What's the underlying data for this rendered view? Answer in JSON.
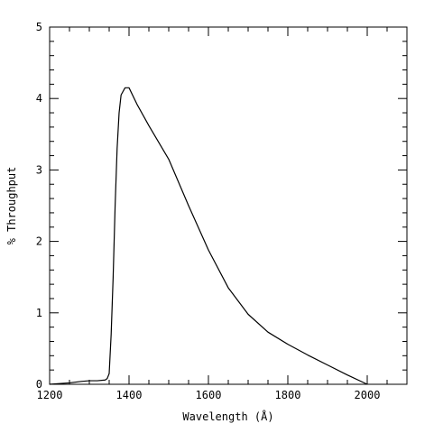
{
  "chart_data": {
    "type": "line",
    "title": "",
    "xlabel": "Wavelength (Å)",
    "ylabel": "% Throughput",
    "xlim": [
      1200,
      2100
    ],
    "ylim": [
      0,
      5
    ],
    "grid": false,
    "x_major_ticks": [
      1200,
      1400,
      1600,
      1800,
      2000
    ],
    "x_tick_labels": [
      "1200",
      "1400",
      "1600",
      "1800",
      "2000"
    ],
    "x_minor_step": 50,
    "y_major_ticks": [
      0,
      1,
      2,
      3,
      4,
      5
    ],
    "y_tick_labels": [
      "0",
      "1",
      "2",
      "3",
      "4",
      "5"
    ],
    "y_minor_step": 0.2,
    "series": [
      {
        "color": "#000000",
        "x": [
          1200,
          1250,
          1280,
          1300,
          1320,
          1340,
          1345,
          1350,
          1355,
          1360,
          1365,
          1370,
          1375,
          1380,
          1390,
          1400,
          1420,
          1450,
          1500,
          1550,
          1600,
          1650,
          1700,
          1750,
          1800,
          1850,
          1900,
          1950,
          2000
        ],
        "y": [
          0.0,
          0.02,
          0.04,
          0.05,
          0.05,
          0.06,
          0.08,
          0.15,
          0.7,
          1.5,
          2.5,
          3.3,
          3.8,
          4.05,
          4.15,
          4.15,
          3.92,
          3.62,
          3.15,
          2.5,
          1.88,
          1.35,
          0.98,
          0.73,
          0.56,
          0.41,
          0.27,
          0.13,
          0.0
        ]
      }
    ]
  }
}
